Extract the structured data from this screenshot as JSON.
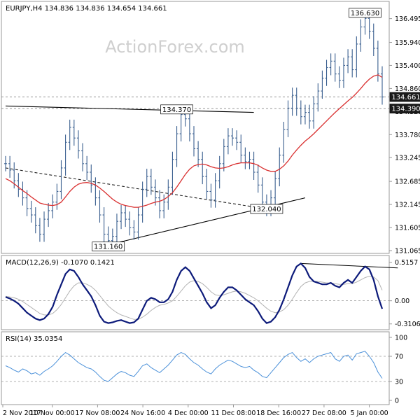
{
  "header": {
    "symbol_line": "EURJPY,H4 134.836 134.836 134.654 134.661",
    "watermark": "ActionForex.com"
  },
  "colors": {
    "up_bar": "#3a5f8f",
    "ma": "#d93030",
    "macd": "#0c1a7a",
    "signal": "#b3b3b3",
    "rsi": "#4a90d9",
    "trendline": "#000000",
    "dashed": "#222222",
    "grid": "#cccccc",
    "price_tag_bg": "#ffffff",
    "current_tag_bg": "#1a1a1a"
  },
  "chart_data": [
    {
      "type": "ohlc",
      "panel": "price",
      "title": "EURJPY,H4 134.836 134.836 134.654 134.661",
      "ylim": [
        131.065,
        136.8
      ],
      "yticks": [
        136.495,
        135.94,
        135.4,
        134.86,
        134.32,
        133.78,
        133.245,
        132.685,
        132.145,
        131.605,
        131.065
      ],
      "xticks": [
        "2 Nov 2017",
        "10 Nov 00:00",
        "17 Nov 08:00",
        "24 Nov 16:00",
        "4 Dec 00:00",
        "11 Dec 08:00",
        "18 Dec 16:00",
        "27 Dec 08:00",
        "5 Jan 00:00"
      ],
      "series": [
        {
          "name": "EURJPY H4",
          "values": [
            133.1,
            132.95,
            132.7,
            132.5,
            132.3,
            132.05,
            131.9,
            131.65,
            131.45,
            131.8,
            132.0,
            132.2,
            132.45,
            133.0,
            133.6,
            133.95,
            133.7,
            133.4,
            133.1,
            132.9,
            132.6,
            132.3,
            131.9,
            131.45,
            131.3,
            131.4,
            131.75,
            131.95,
            131.8,
            131.6,
            131.5,
            131.9,
            132.5,
            132.8,
            132.55,
            132.3,
            132.0,
            132.2,
            132.55,
            133.2,
            133.8,
            134.25,
            134.15,
            133.8,
            133.45,
            133.2,
            132.8,
            132.45,
            132.25,
            132.7,
            133.1,
            133.5,
            133.75,
            133.7,
            133.6,
            133.3,
            133.15,
            133.2,
            132.9,
            132.6,
            132.2,
            132.05,
            132.3,
            132.75,
            133.3,
            133.9,
            134.4,
            134.7,
            134.4,
            134.2,
            134.3,
            134.1,
            134.5,
            134.8,
            135.1,
            135.35,
            135.5,
            135.2,
            135.05,
            135.4,
            135.6,
            135.3,
            135.9,
            136.3,
            136.5,
            136.2,
            135.8,
            135.2,
            134.661
          ]
        },
        {
          "name": "MA",
          "values": [
            132.75,
            132.7,
            132.63,
            132.55,
            132.47,
            132.4,
            132.32,
            132.25,
            132.18,
            132.15,
            132.13,
            132.12,
            132.14,
            132.2,
            132.32,
            132.45,
            132.55,
            132.62,
            132.65,
            132.66,
            132.64,
            132.6,
            132.53,
            132.45,
            132.36,
            132.27,
            132.2,
            132.15,
            132.12,
            132.1,
            132.08,
            132.08,
            132.1,
            132.13,
            132.17,
            132.2,
            132.22,
            132.26,
            132.33,
            132.42,
            132.55,
            132.7,
            132.85,
            132.97,
            133.05,
            133.08,
            133.09,
            133.07,
            133.03,
            133.0,
            132.99,
            133.0,
            133.03,
            133.07,
            133.1,
            133.12,
            133.12,
            133.12,
            133.1,
            133.06,
            133.0,
            132.95,
            132.92,
            132.92,
            132.97,
            133.05,
            133.16,
            133.3,
            133.42,
            133.53,
            133.63,
            133.71,
            133.8,
            133.9,
            134.0,
            134.1,
            134.2,
            134.3,
            134.39,
            134.48,
            134.57,
            134.65,
            134.75,
            134.86,
            134.98,
            135.08,
            135.15,
            135.18,
            135.12
          ]
        }
      ],
      "annotations": [
        {
          "label": "136.630",
          "x_index": 84,
          "y": 136.63
        },
        {
          "label": "134.370",
          "x_index": 40,
          "y": 134.37
        },
        {
          "label": "132.040",
          "x_index": 61,
          "y": 132.04
        },
        {
          "label": "131.160",
          "x_index": 24,
          "y": 131.16
        },
        {
          "label": "134.661",
          "current": true,
          "y": 134.661
        },
        {
          "label": "134.390",
          "current": true,
          "y": 134.39
        }
      ],
      "levels": [
        134.661,
        134.39
      ],
      "trendlines": [
        {
          "style": "solid",
          "from": {
            "x_index": 0,
            "y": 134.45
          },
          "to": {
            "x_index": 58,
            "y": 134.3
          }
        },
        {
          "style": "solid",
          "from": {
            "x_index": 24,
            "y": 131.2
          },
          "to": {
            "x_index": 70,
            "y": 132.3
          }
        },
        {
          "style": "dashed",
          "from": {
            "x_index": 0,
            "y": 133.0
          },
          "to": {
            "x_index": 61,
            "y": 132.04
          }
        }
      ]
    },
    {
      "type": "line",
      "panel": "macd",
      "title": "MACD(12,26,9) -0.1070 0.1421",
      "ylim": [
        -0.36,
        0.56
      ],
      "yticks": [
        0.5157,
        0.0,
        -0.3106
      ],
      "series": [
        {
          "name": "MACD",
          "values": [
            0.05,
            0.03,
            0.0,
            -0.04,
            -0.1,
            -0.16,
            -0.2,
            -0.24,
            -0.26,
            -0.24,
            -0.18,
            -0.08,
            0.08,
            0.22,
            0.36,
            0.42,
            0.4,
            0.32,
            0.22,
            0.14,
            0.06,
            -0.06,
            -0.2,
            -0.28,
            -0.3,
            -0.29,
            -0.27,
            -0.26,
            -0.28,
            -0.3,
            -0.29,
            -0.24,
            -0.12,
            0.0,
            0.04,
            0.02,
            -0.02,
            -0.02,
            0.02,
            0.12,
            0.28,
            0.4,
            0.45,
            0.4,
            0.3,
            0.2,
            0.1,
            -0.02,
            -0.1,
            -0.06,
            0.04,
            0.12,
            0.18,
            0.18,
            0.14,
            0.08,
            0.02,
            -0.02,
            -0.06,
            -0.14,
            -0.24,
            -0.3,
            -0.28,
            -0.22,
            -0.12,
            0.02,
            0.18,
            0.34,
            0.46,
            0.5,
            0.44,
            0.32,
            0.26,
            0.24,
            0.22,
            0.22,
            0.24,
            0.2,
            0.18,
            0.24,
            0.28,
            0.24,
            0.32,
            0.4,
            0.46,
            0.42,
            0.28,
            0.06,
            -0.107
          ]
        },
        {
          "name": "Signal",
          "values": [
            0.06,
            0.05,
            0.04,
            0.02,
            -0.01,
            -0.05,
            -0.09,
            -0.13,
            -0.17,
            -0.19,
            -0.19,
            -0.17,
            -0.12,
            -0.05,
            0.04,
            0.13,
            0.2,
            0.24,
            0.24,
            0.22,
            0.19,
            0.14,
            0.07,
            0.0,
            -0.07,
            -0.12,
            -0.16,
            -0.19,
            -0.21,
            -0.23,
            -0.25,
            -0.25,
            -0.22,
            -0.18,
            -0.13,
            -0.09,
            -0.06,
            -0.05,
            -0.03,
            0.0,
            0.06,
            0.13,
            0.2,
            0.25,
            0.27,
            0.26,
            0.23,
            0.18,
            0.12,
            0.08,
            0.07,
            0.08,
            0.1,
            0.12,
            0.13,
            0.12,
            0.1,
            0.07,
            0.04,
            0.0,
            -0.05,
            -0.1,
            -0.14,
            -0.16,
            -0.15,
            -0.12,
            -0.06,
            0.02,
            0.11,
            0.19,
            0.24,
            0.26,
            0.26,
            0.26,
            0.25,
            0.24,
            0.24,
            0.23,
            0.22,
            0.22,
            0.23,
            0.23,
            0.25,
            0.28,
            0.31,
            0.33,
            0.32,
            0.27,
            0.1421
          ]
        }
      ],
      "trendlines": [
        {
          "style": "solid",
          "from": {
            "x_index": 69,
            "y": 0.5
          },
          "to": {
            "x_index": 90,
            "y": 0.44
          }
        }
      ]
    },
    {
      "type": "line",
      "panel": "rsi",
      "title": "RSI(14) 35.0354",
      "ylim": [
        0,
        100
      ],
      "yticks": [
        100,
        70,
        30,
        0
      ],
      "levels": [
        70,
        30
      ],
      "series": [
        {
          "name": "RSI(14)",
          "values": [
            55,
            52,
            48,
            45,
            50,
            47,
            42,
            44,
            40,
            46,
            50,
            55,
            62,
            70,
            76,
            72,
            66,
            60,
            56,
            52,
            50,
            45,
            38,
            32,
            30,
            36,
            42,
            46,
            44,
            40,
            38,
            46,
            55,
            58,
            52,
            48,
            44,
            50,
            56,
            64,
            72,
            76,
            73,
            66,
            60,
            56,
            50,
            45,
            42,
            50,
            56,
            60,
            64,
            62,
            58,
            54,
            52,
            54,
            48,
            44,
            38,
            36,
            44,
            52,
            60,
            68,
            73,
            76,
            68,
            62,
            66,
            60,
            66,
            70,
            72,
            74,
            76,
            66,
            62,
            70,
            72,
            64,
            74,
            76,
            78,
            70,
            60,
            45,
            35.0354
          ]
        }
      ]
    }
  ]
}
